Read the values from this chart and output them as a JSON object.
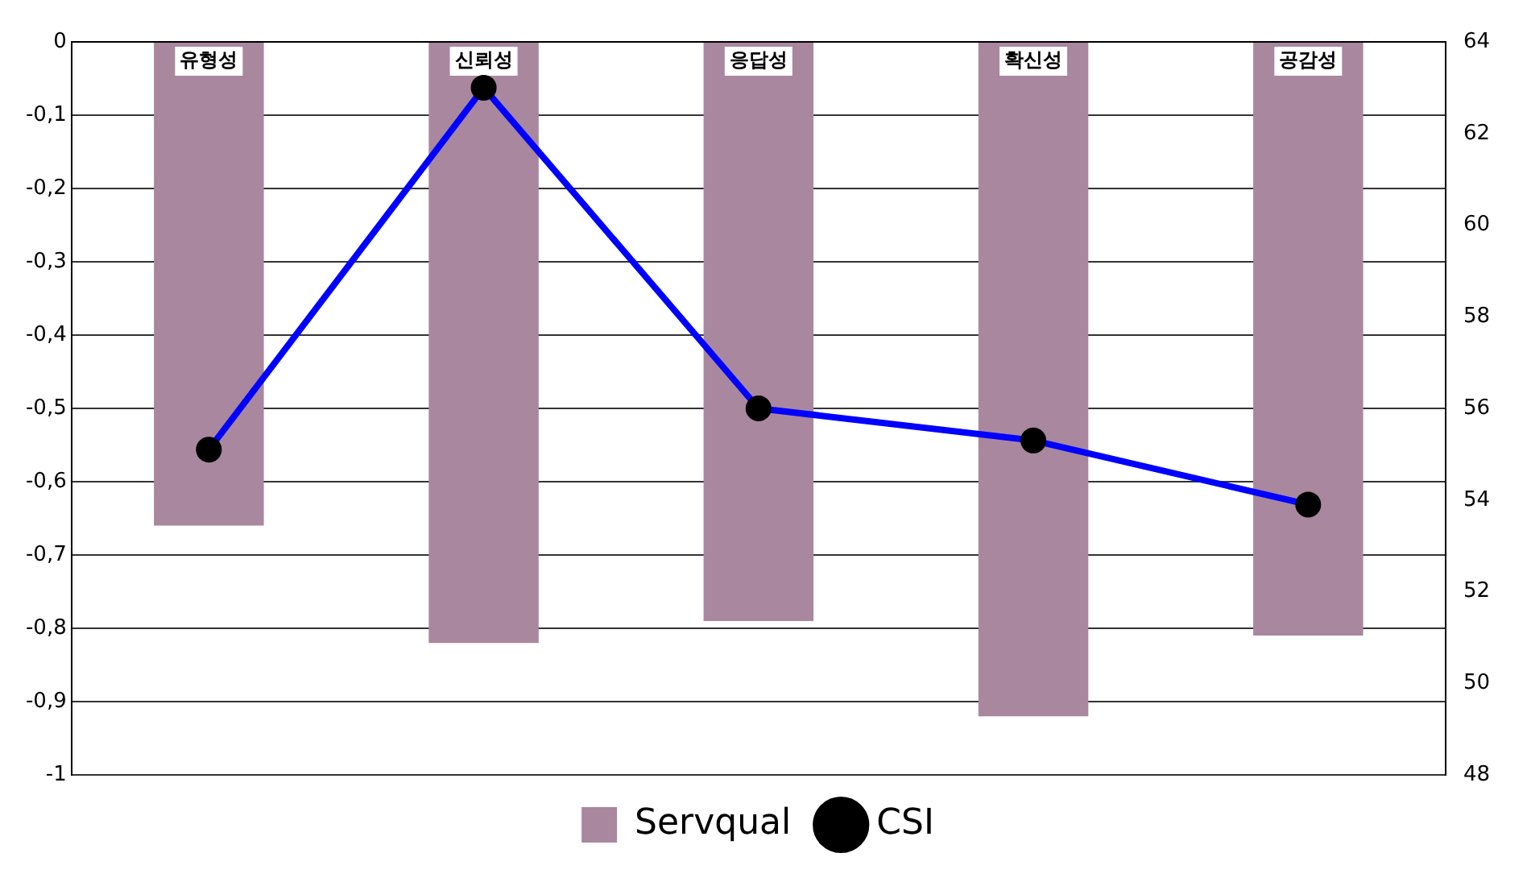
{
  "chart_data": {
    "type": "bar",
    "categories": [
      "유형성",
      "신뢰성",
      "응답성",
      "확신성",
      "공감성"
    ],
    "series": [
      {
        "name": "Servqual",
        "color": "#a9879f",
        "values": [
          -0.66,
          -0.82,
          -0.79,
          -0.92,
          -0.81
        ]
      },
      {
        "name": "CSI",
        "type": "line",
        "axis": "y2",
        "color": "#0000ff",
        "values": [
          55.1,
          63,
          56,
          55.3,
          53.9
        ]
      }
    ],
    "ylim": [
      -1,
      0
    ],
    "yticks": [
      {
        "value": -1,
        "label": "-1"
      },
      {
        "value": -0.9,
        "label": "-0,9"
      },
      {
        "value": -0.8,
        "label": "-0,8"
      },
      {
        "value": -0.7,
        "label": "-0,7"
      },
      {
        "value": -0.6,
        "label": "-0,6"
      },
      {
        "value": -0.5,
        "label": "-0,5"
      },
      {
        "value": -0.4,
        "label": "-0,4"
      },
      {
        "value": -0.3,
        "label": "-0,3"
      },
      {
        "value": -0.2,
        "label": "-0,2"
      },
      {
        "value": -0.1,
        "label": "-0,1"
      },
      0
    ],
    "y2lim": [
      48,
      64
    ],
    "y2ticks": [
      48,
      50,
      52,
      54,
      56,
      58,
      60,
      62,
      64
    ],
    "grid": "y",
    "legend": "bottom",
    "marker": "circle",
    "line_style": "solid"
  }
}
